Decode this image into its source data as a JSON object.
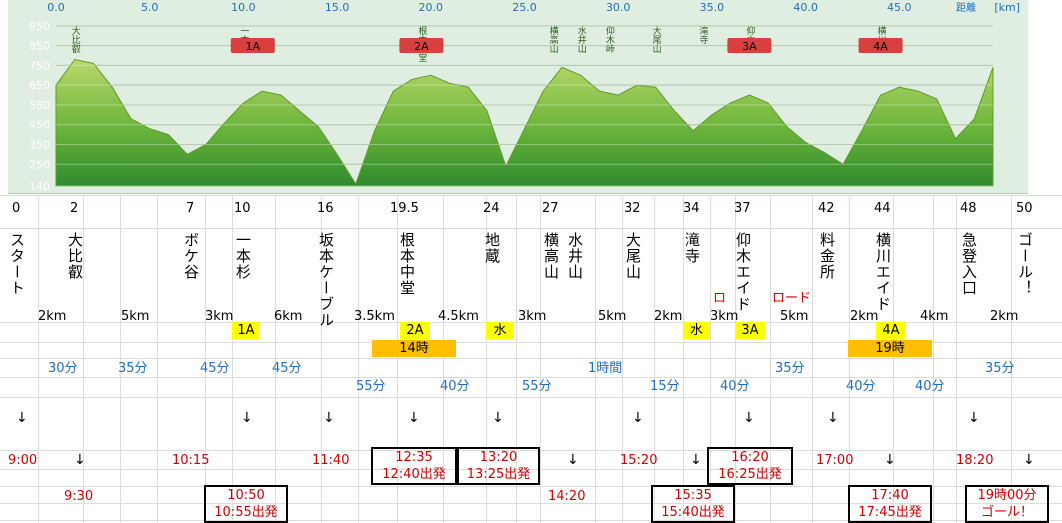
{
  "chart_data": {
    "type": "area",
    "title": "",
    "xlabel": "距離 [km]",
    "ylabel": "",
    "x_ticks": [
      "0.0",
      "5.0",
      "10.0",
      "15.0",
      "20.0",
      "25.0",
      "30.0",
      "35.0",
      "40.0",
      "45.0"
    ],
    "y_ticks": [
      "950",
      "850",
      "750",
      "650",
      "550",
      "450",
      "350",
      "250",
      "140"
    ],
    "xlim": [
      0,
      50
    ],
    "ylim": [
      140,
      1000
    ],
    "aid_stations": [
      {
        "label": "1A",
        "km": 10.5
      },
      {
        "label": "2A",
        "km": 19.5
      },
      {
        "label": "3A",
        "km": 37.0
      },
      {
        "label": "4A",
        "km": 44.0
      }
    ],
    "peaks": [
      {
        "name": "大比叡",
        "km": 1.0
      },
      {
        "name": "一本杉",
        "km": 10.0
      },
      {
        "name": "根本中堂",
        "km": 19.5
      },
      {
        "name": "横高山",
        "km": 26.5
      },
      {
        "name": "水井山",
        "km": 28.0
      },
      {
        "name": "仰木峠",
        "km": 29.5
      },
      {
        "name": "大尾山",
        "km": 32.0
      },
      {
        "name": "滝寺",
        "km": 34.5
      },
      {
        "name": "仰木",
        "km": 37.0
      },
      {
        "name": "横川",
        "km": 44.0
      }
    ],
    "series": [
      {
        "x": [
          0,
          1,
          2,
          3,
          4,
          5,
          6,
          7,
          8,
          9,
          10,
          11,
          12,
          13,
          14,
          15,
          16,
          17,
          18,
          19,
          20,
          21,
          22,
          23,
          24,
          25,
          26,
          27,
          28,
          29,
          30,
          31,
          32,
          33,
          34,
          35,
          36,
          37,
          38,
          39,
          40,
          41,
          42,
          43,
          44,
          45,
          46,
          47,
          48,
          49,
          50
        ],
        "values": [
          650,
          780,
          760,
          640,
          480,
          430,
          400,
          300,
          350,
          460,
          560,
          620,
          600,
          520,
          440,
          300,
          150,
          420,
          620,
          680,
          700,
          660,
          640,
          520,
          240,
          430,
          620,
          740,
          700,
          620,
          600,
          650,
          640,
          520,
          420,
          500,
          560,
          600,
          560,
          440,
          360,
          310,
          250,
          420,
          600,
          640,
          620,
          580,
          380,
          480,
          740
        ]
      }
    ]
  },
  "header": {
    "unit_label": "距離",
    "unit_bracket": "[km]"
  },
  "stations": [
    {
      "km": "0",
      "name": "スタート"
    },
    {
      "km": "2",
      "name": "大比叡"
    },
    {
      "km": "7",
      "name": "ボケ谷"
    },
    {
      "km": "10",
      "name": "一本杉"
    },
    {
      "km": "16",
      "name": "坂本ケーブル"
    },
    {
      "km": "19.5",
      "name": "根本中堂"
    },
    {
      "km": "24",
      "name": "地蔵"
    },
    {
      "km": "27",
      "name": "横高山"
    },
    {
      "km": "",
      "name": "水井山"
    },
    {
      "km": "32",
      "name": "大尾山"
    },
    {
      "km": "34",
      "name": "滝寺"
    },
    {
      "km": "37",
      "name": "仰木エイド"
    },
    {
      "km": "42",
      "name": "料金所"
    },
    {
      "km": "44",
      "name": "横川エイド"
    },
    {
      "km": "48",
      "name": "急登入口"
    },
    {
      "km": "50",
      "name": "ゴール！"
    }
  ],
  "red_ro_1": "ロ",
  "red_ro_2": "ロード",
  "distances": [
    "2km",
    "5km",
    "3km",
    "6km",
    "3.5km",
    "4.5km",
    "3km",
    "5km",
    "2km",
    "3km",
    "5km",
    "2km",
    "4km",
    "2km"
  ],
  "aid_marks": {
    "a1": "1A",
    "a2": "2A",
    "w1": "水",
    "w2": "水",
    "a3": "3A",
    "a4": "4A"
  },
  "cutoffs": {
    "c1": "14時",
    "c2": "19時"
  },
  "durations_row1": {
    "d1": "30分",
    "d2": "35分",
    "d3": "45分",
    "d4": "45分",
    "d5": "1時間",
    "d6": "35分",
    "d7": "35分"
  },
  "durations_row2": {
    "d1": "55分",
    "d2": "40分",
    "d3": "55分",
    "d4": "15分",
    "d5": "40分",
    "d6": "40分",
    "d7": "40分"
  },
  "arrow": "↓",
  "times_row1": {
    "t1": "9:00",
    "t2": "10:15",
    "t3": "11:40",
    "t4": "15:20",
    "t5": "17:00",
    "t6": "18:20"
  },
  "times_row2": {
    "t1": "9:30",
    "t2": "14:20"
  },
  "boxes": {
    "b1a": "12:35",
    "b1b": "12:40出発",
    "b2a": "13:20",
    "b2b": "13:25出発",
    "b3a": "16:20",
    "b3b": "16:25出発",
    "b4a": "10:50",
    "b4b": "10:55出発",
    "b5a": "15:35",
    "b5b": "15:40出発",
    "b6a": "17:40",
    "b6b": "17:45出発",
    "b7a": "19時00分",
    "b7b": "ゴール！"
  }
}
